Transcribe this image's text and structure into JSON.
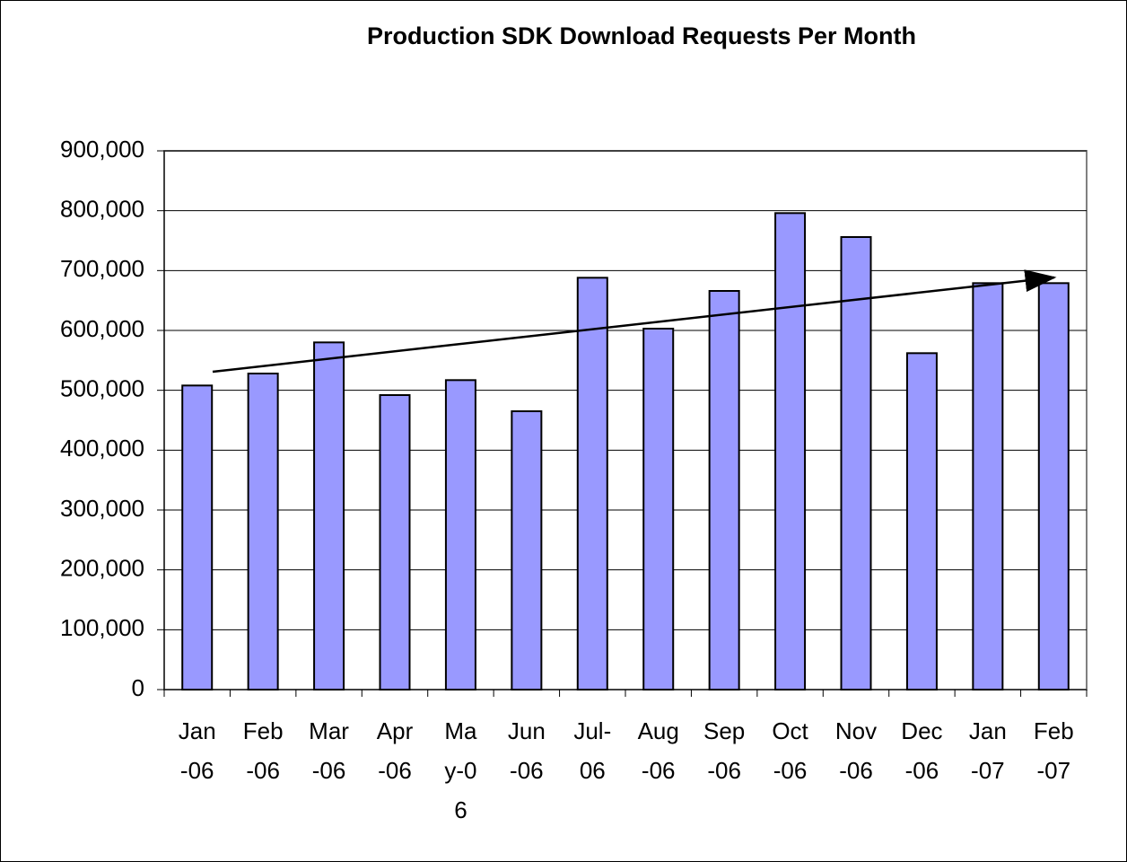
{
  "chart_data": {
    "type": "bar",
    "title": "Production SDK Download Requests Per Month",
    "categories": [
      "Jan-06",
      "Feb-06",
      "Mar-06",
      "Apr-06",
      "May-06",
      "Jun-06",
      "Jul-06",
      "Aug-06",
      "Sep-06",
      "Oct-06",
      "Nov-06",
      "Dec-06",
      "Jan-07",
      "Feb-07"
    ],
    "values": [
      508000,
      528000,
      580000,
      492000,
      517000,
      465000,
      688000,
      603000,
      666000,
      796000,
      756000,
      562000,
      679000,
      679000
    ],
    "color": "#9999ff",
    "ylim": [
      0,
      900000
    ],
    "yticks": [
      0,
      {
        "value": 100000,
        "label": "100,000"
      },
      {
        "value": 200000,
        "label": "200,000"
      },
      {
        "value": 300000,
        "label": "300,000"
      },
      {
        "value": 400000,
        "label": "400,000"
      },
      {
        "value": 500000,
        "label": "500,000"
      },
      {
        "value": 600000,
        "label": "600,000"
      },
      {
        "value": 700000,
        "label": "700,000"
      },
      {
        "value": 800000,
        "label": "800,000"
      },
      {
        "value": 900000,
        "label": "900,000"
      }
    ],
    "grid": true
  }
}
